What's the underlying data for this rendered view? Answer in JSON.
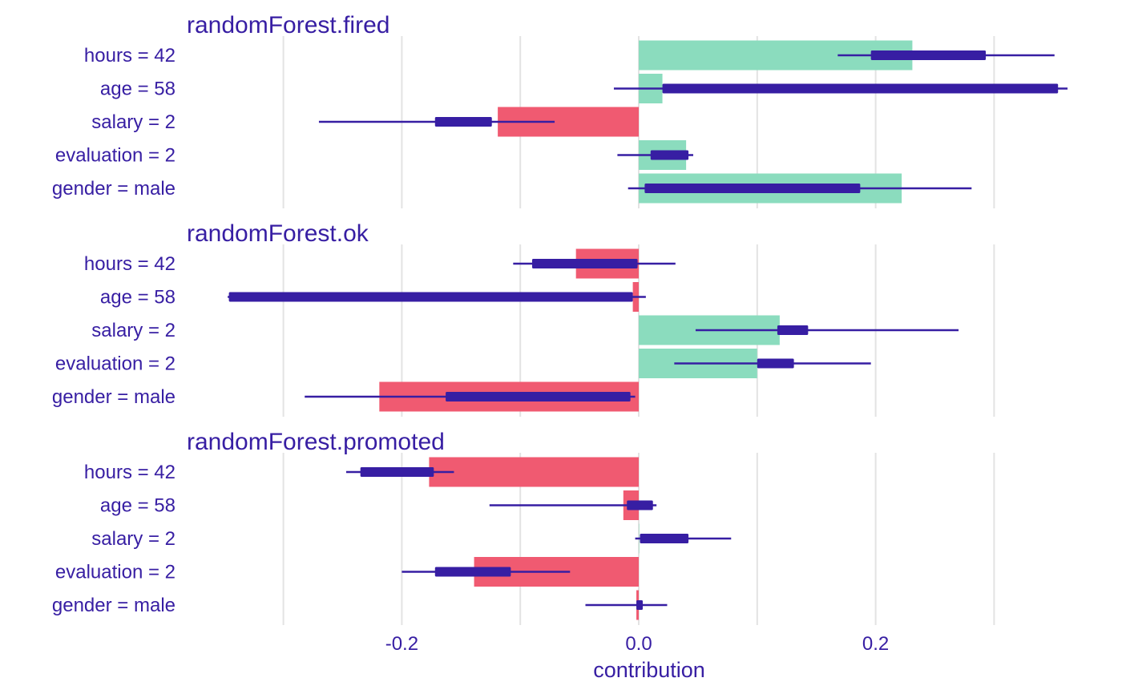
{
  "colors": {
    "positive": "#8bdcbe",
    "negative": "#f05a71",
    "interval": "#371ea3",
    "text": "#371ea3",
    "grid": "#e3e3e3"
  },
  "chart_data": {
    "type": "bar",
    "xlabel": "contribution",
    "xlim": [
      -0.33,
      0.37
    ],
    "xticks": [
      -0.2,
      0.0,
      0.2
    ],
    "xtick_labels": [
      "-0.2",
      "0.0",
      "0.2"
    ],
    "gridlines": [
      -0.3,
      -0.2,
      -0.1,
      0.0,
      0.1,
      0.2,
      0.3
    ],
    "grid": true,
    "categories": [
      "hours = 42",
      "age = 58",
      "salary = 2",
      "evaluation = 2",
      "gender = male"
    ],
    "panels": [
      {
        "title": "randomForest.fired",
        "values": [
          0.231,
          0.02,
          -0.119,
          0.04,
          0.222
        ],
        "whisker_low": [
          0.168,
          -0.021,
          -0.27,
          -0.018,
          -0.009
        ],
        "whisker_high": [
          0.351,
          0.362,
          -0.071,
          0.046,
          0.281
        ],
        "box_low": [
          0.196,
          0.02,
          -0.172,
          0.01,
          0.005
        ],
        "box_high": [
          0.293,
          0.354,
          -0.124,
          0.042,
          0.187
        ]
      },
      {
        "title": "randomForest.ok",
        "values": [
          -0.053,
          -0.005,
          0.119,
          0.1,
          -0.219
        ],
        "whisker_low": [
          -0.106,
          -0.347,
          0.048,
          0.03,
          -0.282
        ],
        "whisker_high": [
          0.031,
          0.006,
          0.27,
          0.196,
          -0.003
        ],
        "box_low": [
          -0.09,
          -0.346,
          0.117,
          0.1,
          -0.163
        ],
        "box_high": [
          -0.001,
          -0.005,
          0.143,
          0.131,
          -0.007
        ]
      },
      {
        "title": "randomForest.promoted",
        "values": [
          -0.177,
          -0.013,
          0.0,
          -0.139,
          -0.002
        ],
        "whisker_low": [
          -0.247,
          -0.126,
          -0.003,
          -0.2,
          -0.045
        ],
        "whisker_high": [
          -0.156,
          0.015,
          0.078,
          -0.058,
          0.024
        ],
        "box_low": [
          -0.235,
          -0.01,
          0.001,
          -0.172,
          -0.002
        ],
        "box_high": [
          -0.173,
          0.012,
          0.042,
          -0.108,
          0.003
        ]
      }
    ]
  }
}
